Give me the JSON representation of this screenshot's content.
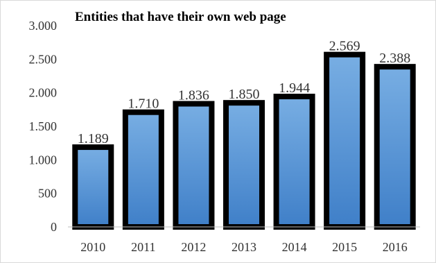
{
  "chart_data": {
    "type": "bar",
    "title": "Entities that have their own web page",
    "categories": [
      "2010",
      "2011",
      "2012",
      "2013",
      "2014",
      "2015",
      "2016"
    ],
    "values": [
      1189,
      1710,
      1836,
      1850,
      1944,
      2569,
      2388
    ],
    "value_labels": [
      "1.189",
      "1.710",
      "1.836",
      "1.850",
      "1.944",
      "2.569",
      "2.388"
    ],
    "y_ticks": [
      0,
      500,
      1000,
      1500,
      2000,
      2500,
      3000
    ],
    "y_tick_labels": [
      "0",
      "500",
      "1.000",
      "1.500",
      "2.000",
      "2.500",
      "3.000"
    ],
    "ylim": [
      0,
      3000
    ],
    "xlabel": "",
    "ylabel": "",
    "grid": false,
    "legend": "none",
    "colors": {
      "bar_fill_top": "#78aee3",
      "bar_fill_bottom": "#3f7fc8",
      "bar_border": "#000000",
      "axis": "#bfbfbf",
      "frame": "#d9d9d9",
      "text": "#333333"
    }
  }
}
